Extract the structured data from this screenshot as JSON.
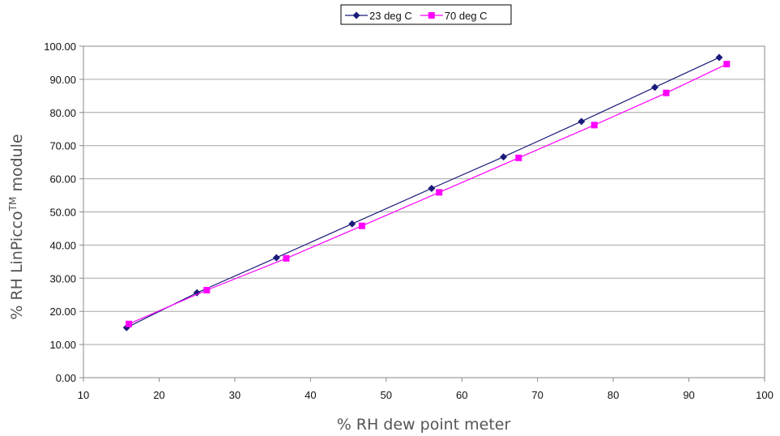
{
  "chart_data": {
    "type": "line",
    "title": "",
    "xlabel": "% RH dew point meter",
    "ylabel_main": "% RH LinPicco",
    "ylabel_superscript": "TM",
    "ylabel_suffix": " module",
    "xlim": [
      10,
      100
    ],
    "ylim": [
      0,
      100
    ],
    "x_ticks": [
      "10",
      "20",
      "30",
      "40",
      "50",
      "60",
      "70",
      "80",
      "90",
      "100"
    ],
    "y_ticks": [
      "0.00",
      "10.00",
      "20.00",
      "30.00",
      "40.00",
      "50.00",
      "60.00",
      "70.00",
      "80.00",
      "90.00",
      "100.00"
    ],
    "grid": "horizontal",
    "legend_position": "top-center",
    "series": [
      {
        "name": "23 deg C",
        "color": "#1a1a7a",
        "marker": "diamond",
        "points": [
          [
            15.7,
            15.1
          ],
          [
            25.0,
            25.6
          ],
          [
            35.5,
            36.2
          ],
          [
            45.5,
            46.4
          ],
          [
            56.0,
            57.1
          ],
          [
            65.5,
            66.6
          ],
          [
            75.8,
            77.3
          ],
          [
            85.5,
            87.6
          ],
          [
            94.0,
            96.6
          ]
        ]
      },
      {
        "name": "70 deg C",
        "color": "#ff00ff",
        "marker": "square",
        "points": [
          [
            16.0,
            16.2
          ],
          [
            26.3,
            26.4
          ],
          [
            36.8,
            36.0
          ],
          [
            46.8,
            45.8
          ],
          [
            57.0,
            55.9
          ],
          [
            67.5,
            66.3
          ],
          [
            77.5,
            76.2
          ],
          [
            87.0,
            85.9
          ],
          [
            95.0,
            94.6
          ]
        ]
      }
    ]
  }
}
